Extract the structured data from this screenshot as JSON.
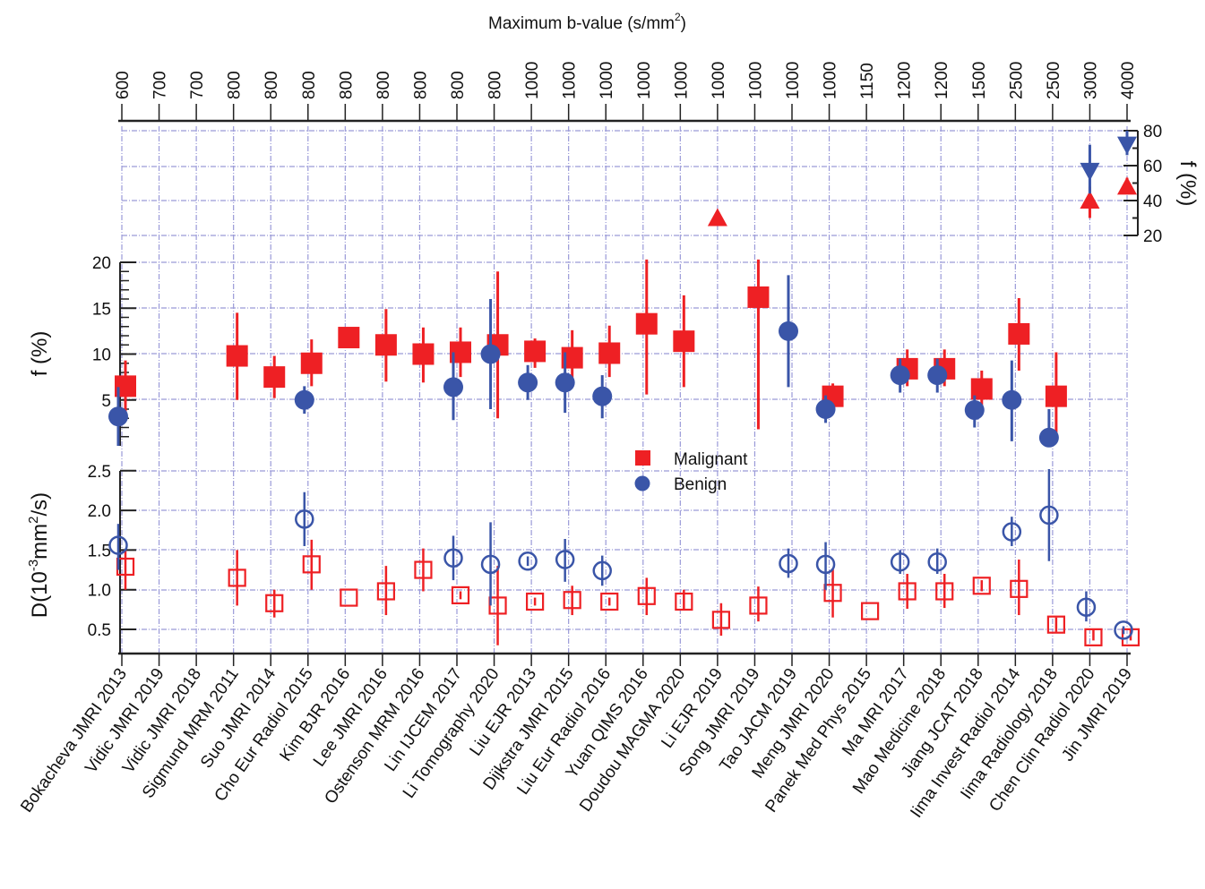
{
  "chart_data": {
    "type": "scatter",
    "title": "",
    "top_axis": {
      "label": "Maximum b-value (s/mm",
      "label_sup": "2",
      "label_end": ")",
      "tick_labels": [
        "600",
        "700",
        "700",
        "800",
        "800",
        "800",
        "800",
        "800",
        "800",
        "800",
        "800",
        "1000",
        "1000",
        "1000",
        "1000",
        "1000",
        "1000",
        "1000",
        "1000",
        "1000",
        "1150",
        "1200",
        "1200",
        "1500",
        "2500",
        "2500",
        "3000",
        "4000"
      ]
    },
    "categories": [
      "Bokacheva JMRI 2013",
      "Vidic JMRI 2019",
      "Vidic JMRI 2018",
      "Sigmund MRM 2011",
      "Suo JMRI 2014",
      "Cho Eur Radiol 2015",
      "Kim BJR 2016",
      "Lee JMRI 2016",
      "Ostenson MRM 2016",
      "Lin IJCEM 2017",
      "Li Tomography 2020",
      "Liu EJR 2013",
      "Dijkstra JMRI 2015",
      "Liu Eur Radiol 2016",
      "Yuan QIMS 2016",
      "Doudou MAGMA 2020",
      "Li EJR 2019",
      "Song JMRI 2019",
      "Tao JACM 2019",
      "Meng JMRI 2020",
      "Panek Med Phys 2015",
      "Ma MRI 2017",
      "Mao Medicine 2018",
      "Jiang JCAT 2018",
      "Iima Invest Radiol 2014",
      "Iima Radiology 2018",
      "Chen Clin Radiol 2020",
      "Jin JMRI 2019"
    ],
    "b_values": [
      600,
      700,
      700,
      800,
      800,
      800,
      800,
      800,
      800,
      800,
      800,
      1000,
      1000,
      1000,
      1000,
      1000,
      1000,
      1000,
      1000,
      1000,
      1150,
      1200,
      1200,
      1500,
      2500,
      2500,
      3000,
      4000
    ],
    "panels": {
      "f_high": {
        "ylabel": "f (%)",
        "ylim": [
          20,
          80
        ],
        "ticks": [
          "20",
          "40",
          "60",
          "80"
        ],
        "axis_side": "right"
      },
      "f_low": {
        "ylabel": "f (%)",
        "ylim": [
          0,
          20
        ],
        "ticks": [
          "5",
          "10",
          "15",
          "20"
        ],
        "axis_side": "left"
      },
      "D": {
        "ylabel": "D(10",
        "ylabel_sup1": "-3",
        "ylabel_mid": "mm",
        "ylabel_sup2": "2",
        "ylabel_end": "/s)",
        "ylim": [
          0.2,
          2.6
        ],
        "ticks": [
          "0.5",
          "1.0",
          "1.5",
          "2.0",
          "2.5"
        ],
        "axis_side": "left"
      }
    },
    "series": [
      {
        "name": "Malignant",
        "color": "#ee2024",
        "f": [
          {
            "i": 0,
            "v": 6.5,
            "lo": 3.0,
            "hi": 9.3
          },
          {
            "i": 3,
            "v": 9.8,
            "lo": 5.0,
            "hi": 14.5
          },
          {
            "i": 4,
            "v": 7.5,
            "lo": 5.2,
            "hi": 9.8
          },
          {
            "i": 5,
            "v": 9.0,
            "lo": 6.5,
            "hi": 11.6
          },
          {
            "i": 6,
            "v": 11.8,
            "lo": null,
            "hi": null
          },
          {
            "i": 7,
            "v": 11.0,
            "lo": 7.0,
            "hi": 14.9
          },
          {
            "i": 8,
            "v": 10.0,
            "lo": 6.9,
            "hi": 12.9
          },
          {
            "i": 9,
            "v": 10.2,
            "lo": 7.5,
            "hi": 12.9
          },
          {
            "i": 10,
            "v": 11.0,
            "lo": 3.0,
            "hi": 19.0
          },
          {
            "i": 11,
            "v": 10.3,
            "lo": 8.5,
            "hi": 11.7
          },
          {
            "i": 12,
            "v": 9.6,
            "lo": 6.5,
            "hi": 12.6
          },
          {
            "i": 13,
            "v": 10.1,
            "lo": 7.5,
            "hi": 13.1
          },
          {
            "i": 14,
            "v": 13.3,
            "lo": 5.6,
            "hi": 20.3
          },
          {
            "i": 15,
            "v": 11.4,
            "lo": 6.4,
            "hi": 16.4
          },
          {
            "i": 17,
            "v": 16.2,
            "lo": 1.8,
            "hi": 20.3
          },
          {
            "i": 19,
            "v": 5.4,
            "lo": 4.5,
            "hi": 6.8
          },
          {
            "i": 21,
            "v": 8.4,
            "lo": 6.5,
            "hi": 10.5
          },
          {
            "i": 22,
            "v": 8.4,
            "lo": 6.5,
            "hi": 10.5
          },
          {
            "i": 23,
            "v": 6.2,
            "lo": 4.4,
            "hi": 8.2
          },
          {
            "i": 24,
            "v": 12.2,
            "lo": 8.2,
            "hi": 16.1
          },
          {
            "i": 25,
            "v": 5.4,
            "lo": 0.6,
            "hi": 10.2
          }
        ],
        "f_high": [
          {
            "i": 16,
            "v": 30,
            "lo": null,
            "hi": null
          },
          {
            "i": 26,
            "v": 40,
            "lo": 30,
            "hi": 48
          },
          {
            "i": 27,
            "v": 48,
            "lo": 44,
            "hi": 53
          }
        ],
        "D": [
          {
            "i": 0,
            "v": 1.29,
            "lo": 1.0,
            "hi": 1.5
          },
          {
            "i": 3,
            "v": 1.15,
            "lo": 0.8,
            "hi": 1.5
          },
          {
            "i": 4,
            "v": 0.83,
            "lo": 0.65,
            "hi": 1.0
          },
          {
            "i": 5,
            "v": 1.32,
            "lo": 1.0,
            "hi": 1.63
          },
          {
            "i": 6,
            "v": 0.9,
            "lo": null,
            "hi": null
          },
          {
            "i": 7,
            "v": 0.98,
            "lo": 0.68,
            "hi": 1.3
          },
          {
            "i": 8,
            "v": 1.25,
            "lo": 0.98,
            "hi": 1.52
          },
          {
            "i": 9,
            "v": 0.93,
            "lo": 0.88,
            "hi": 0.98
          },
          {
            "i": 10,
            "v": 0.8,
            "lo": 0.3,
            "hi": 1.3
          },
          {
            "i": 11,
            "v": 0.85,
            "lo": 0.8,
            "hi": 0.9
          },
          {
            "i": 12,
            "v": 0.87,
            "lo": 0.68,
            "hi": 1.05
          },
          {
            "i": 13,
            "v": 0.85,
            "lo": 0.8,
            "hi": 0.9
          },
          {
            "i": 14,
            "v": 0.92,
            "lo": 0.68,
            "hi": 1.15
          },
          {
            "i": 15,
            "v": 0.85,
            "lo": 0.75,
            "hi": 1.0
          },
          {
            "i": 16,
            "v": 0.62,
            "lo": 0.42,
            "hi": 0.83
          },
          {
            "i": 17,
            "v": 0.8,
            "lo": 0.6,
            "hi": 1.04
          },
          {
            "i": 19,
            "v": 0.96,
            "lo": 0.65,
            "hi": 1.27
          },
          {
            "i": 20,
            "v": 0.73,
            "lo": null,
            "hi": null
          },
          {
            "i": 21,
            "v": 0.98,
            "lo": 0.76,
            "hi": 1.2
          },
          {
            "i": 22,
            "v": 0.98,
            "lo": 0.77,
            "hi": 1.2
          },
          {
            "i": 23,
            "v": 1.05,
            "lo": 0.98,
            "hi": 1.12
          },
          {
            "i": 24,
            "v": 1.01,
            "lo": 0.68,
            "hi": 1.38
          },
          {
            "i": 25,
            "v": 0.56,
            "lo": 0.47,
            "hi": 0.65
          },
          {
            "i": 26,
            "v": 0.4,
            "lo": 0.36,
            "hi": 0.5
          },
          {
            "i": 27,
            "v": 0.4,
            "lo": 0.36,
            "hi": 0.5
          }
        ]
      },
      {
        "name": "Benign",
        "color": "#3a55a8",
        "f": [
          {
            "i": 0,
            "v": 3.2,
            "lo": 0.0,
            "hi": 6.4
          },
          {
            "i": 5,
            "v": 5.0,
            "lo": 3.5,
            "hi": 6.5
          },
          {
            "i": 9,
            "v": 6.4,
            "lo": 2.8,
            "hi": 10.2
          },
          {
            "i": 10,
            "v": 10.0,
            "lo": 4.0,
            "hi": 16.0
          },
          {
            "i": 11,
            "v": 6.9,
            "lo": 5.0,
            "hi": 8.8
          },
          {
            "i": 12,
            "v": 6.9,
            "lo": 3.6,
            "hi": 10.2
          },
          {
            "i": 13,
            "v": 5.4,
            "lo": 3.0,
            "hi": 7.7
          },
          {
            "i": 18,
            "v": 12.5,
            "lo": 6.4,
            "hi": 18.6
          },
          {
            "i": 19,
            "v": 4.0,
            "lo": 2.5,
            "hi": 5.5
          },
          {
            "i": 21,
            "v": 7.7,
            "lo": 5.8,
            "hi": 9.5
          },
          {
            "i": 22,
            "v": 7.7,
            "lo": 5.8,
            "hi": 9.5
          },
          {
            "i": 23,
            "v": 3.9,
            "lo": 2.0,
            "hi": 5.5
          },
          {
            "i": 24,
            "v": 5.0,
            "lo": 0.5,
            "hi": 9.3
          },
          {
            "i": 25,
            "v": 0.9,
            "lo": null,
            "hi": 4.0
          }
        ],
        "f_high": [
          {
            "i": 26,
            "v": 57,
            "lo": 44,
            "hi": 72
          },
          {
            "i": 27,
            "v": 72,
            "lo": 66,
            "hi": 80
          }
        ],
        "D": [
          {
            "i": 0,
            "v": 1.56,
            "lo": 1.25,
            "hi": 1.83
          },
          {
            "i": 5,
            "v": 1.89,
            "lo": 1.55,
            "hi": 2.23
          },
          {
            "i": 9,
            "v": 1.4,
            "lo": 1.12,
            "hi": 1.68
          },
          {
            "i": 10,
            "v": 1.32,
            "lo": 0.8,
            "hi": 1.85
          },
          {
            "i": 11,
            "v": 1.36,
            "lo": 1.3,
            "hi": 1.42
          },
          {
            "i": 12,
            "v": 1.38,
            "lo": 1.1,
            "hi": 1.64
          },
          {
            "i": 13,
            "v": 1.24,
            "lo": 1.05,
            "hi": 1.43
          },
          {
            "i": 18,
            "v": 1.33,
            "lo": 1.15,
            "hi": 1.52
          },
          {
            "i": 19,
            "v": 1.32,
            "lo": 1.0,
            "hi": 1.6
          },
          {
            "i": 21,
            "v": 1.35,
            "lo": 1.2,
            "hi": 1.5
          },
          {
            "i": 22,
            "v": 1.35,
            "lo": 1.2,
            "hi": 1.52
          },
          {
            "i": 24,
            "v": 1.73,
            "lo": 1.55,
            "hi": 1.92
          },
          {
            "i": 25,
            "v": 1.94,
            "lo": 1.36,
            "hi": 2.52
          },
          {
            "i": 26,
            "v": 0.78,
            "lo": 0.6,
            "hi": 0.98
          },
          {
            "i": 27,
            "v": 0.49,
            "lo": 0.44,
            "hi": 0.54
          }
        ]
      }
    ],
    "legend": {
      "position": "center",
      "entries": [
        {
          "label": "Malignant",
          "marker": "square",
          "color": "#ee2024"
        },
        {
          "label": "Benign",
          "marker": "circle",
          "color": "#3a55a8"
        }
      ]
    },
    "grid": true,
    "grid_color": "#9a9ad8"
  }
}
